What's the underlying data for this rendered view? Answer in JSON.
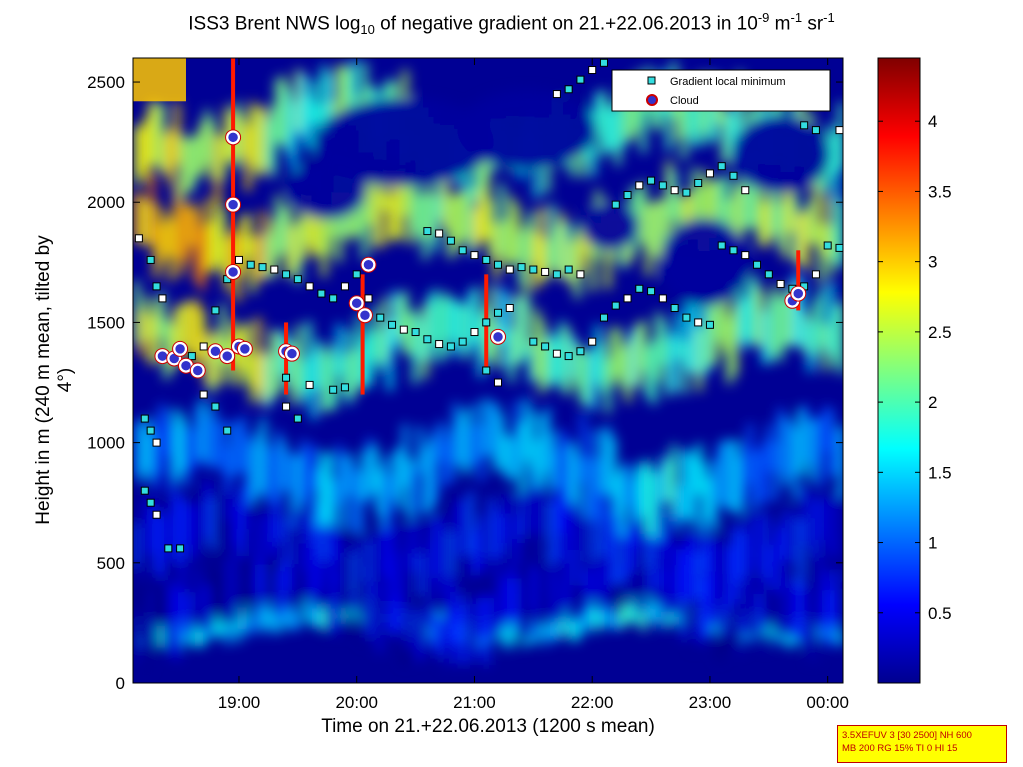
{
  "chart_data": {
    "type": "heatmap",
    "title_parts": {
      "pre": "ISS3 Brent NWS log",
      "sub": "10",
      "mid": " of negative gradient on 21.+22.06.2013 in 10",
      "sup1": "-9",
      "mid2": " m",
      "sup2": "-1",
      "mid3": " sr",
      "sup3": "-1"
    },
    "xlabel": "Time on 21.+22.06.2013 (1200 s mean)",
    "ylabel": "Height in m (240 m mean, tilted by 4°)",
    "x_unit": "hours since 21.06.2013 00:00",
    "xlim": [
      18.1,
      24.13
    ],
    "ylim": [
      0,
      2600
    ],
    "x_ticks": [
      {
        "value": 19,
        "label": "19:00"
      },
      {
        "value": 20,
        "label": "20:00"
      },
      {
        "value": 21,
        "label": "21:00"
      },
      {
        "value": 22,
        "label": "22:00"
      },
      {
        "value": 23,
        "label": "23:00"
      },
      {
        "value": 24,
        "label": "00:00"
      }
    ],
    "y_ticks": [
      0,
      500,
      1000,
      1500,
      2000,
      2500
    ],
    "colorbar": {
      "colormap": "jet",
      "clim": [
        0,
        4.45
      ],
      "ticks": [
        0.5,
        1,
        1.5,
        2,
        2.5,
        3,
        3.5,
        4
      ]
    },
    "legend": {
      "position": "top-right",
      "entries": [
        {
          "name": "Gradient local minimum",
          "marker": "square",
          "color": "#33dde0"
        },
        {
          "name": "Cloud",
          "marker": "circle",
          "color": "#cc0000"
        }
      ]
    },
    "field_layers": [
      {
        "y": 250,
        "value": 1.5,
        "note": "low turbulent band"
      },
      {
        "y": 350,
        "value": 0.3
      },
      {
        "y": 600,
        "value": 0.5
      },
      {
        "y": 900,
        "value": 1.2
      },
      {
        "y": 1400,
        "value": 2.0
      },
      {
        "y": 1900,
        "value": 2.4
      },
      {
        "y": 2300,
        "value": 2.0
      }
    ],
    "series": [
      {
        "name": "Gradient local minimum",
        "points": [
          [
            18.15,
            1850
          ],
          [
            18.25,
            1760
          ],
          [
            18.3,
            1650
          ],
          [
            18.35,
            1600
          ],
          [
            18.45,
            1340
          ],
          [
            18.6,
            1360
          ],
          [
            18.7,
            1400
          ],
          [
            18.8,
            1550
          ],
          [
            18.9,
            1680
          ],
          [
            19.0,
            1760
          ],
          [
            19.1,
            1740
          ],
          [
            19.2,
            1730
          ],
          [
            19.3,
            1720
          ],
          [
            19.4,
            1700
          ],
          [
            19.5,
            1680
          ],
          [
            19.6,
            1650
          ],
          [
            19.7,
            1620
          ],
          [
            19.8,
            1600
          ],
          [
            19.9,
            1650
          ],
          [
            20.0,
            1700
          ],
          [
            19.4,
            1270
          ],
          [
            19.6,
            1240
          ],
          [
            19.8,
            1220
          ],
          [
            19.9,
            1230
          ],
          [
            20.1,
            1600
          ],
          [
            20.2,
            1520
          ],
          [
            20.3,
            1490
          ],
          [
            20.4,
            1470
          ],
          [
            20.5,
            1460
          ],
          [
            20.6,
            1430
          ],
          [
            20.7,
            1410
          ],
          [
            20.8,
            1400
          ],
          [
            20.9,
            1420
          ],
          [
            21.0,
            1460
          ],
          [
            21.1,
            1500
          ],
          [
            21.2,
            1540
          ],
          [
            21.3,
            1560
          ],
          [
            21.5,
            1420
          ],
          [
            21.6,
            1400
          ],
          [
            21.7,
            1370
          ],
          [
            21.8,
            1360
          ],
          [
            21.9,
            1380
          ],
          [
            22.0,
            1420
          ],
          [
            22.1,
            1520
          ],
          [
            22.2,
            1570
          ],
          [
            22.3,
            1600
          ],
          [
            22.4,
            1640
          ],
          [
            22.5,
            1630
          ],
          [
            22.6,
            1600
          ],
          [
            22.7,
            1560
          ],
          [
            22.8,
            1520
          ],
          [
            22.9,
            1500
          ],
          [
            23.0,
            1490
          ],
          [
            20.6,
            1880
          ],
          [
            20.7,
            1870
          ],
          [
            20.8,
            1840
          ],
          [
            20.9,
            1800
          ],
          [
            21.0,
            1780
          ],
          [
            21.1,
            1760
          ],
          [
            21.2,
            1740
          ],
          [
            21.3,
            1720
          ],
          [
            21.4,
            1730
          ],
          [
            21.5,
            1720
          ],
          [
            21.6,
            1710
          ],
          [
            21.7,
            1700
          ],
          [
            21.8,
            1720
          ],
          [
            21.9,
            1700
          ],
          [
            22.2,
            1990
          ],
          [
            22.3,
            2030
          ],
          [
            22.4,
            2070
          ],
          [
            22.5,
            2090
          ],
          [
            22.6,
            2070
          ],
          [
            22.7,
            2050
          ],
          [
            22.8,
            2040
          ],
          [
            22.9,
            2080
          ],
          [
            23.0,
            2120
          ],
          [
            23.1,
            2150
          ],
          [
            23.2,
            2110
          ],
          [
            23.3,
            2050
          ],
          [
            23.1,
            1820
          ],
          [
            23.2,
            1800
          ],
          [
            23.3,
            1780
          ],
          [
            23.4,
            1740
          ],
          [
            23.5,
            1700
          ],
          [
            23.6,
            1660
          ],
          [
            23.7,
            1640
          ],
          [
            23.8,
            1650
          ],
          [
            23.9,
            1700
          ],
          [
            24.0,
            1820
          ],
          [
            24.1,
            1810
          ],
          [
            21.7,
            2450
          ],
          [
            21.8,
            2470
          ],
          [
            21.9,
            2510
          ],
          [
            22.0,
            2550
          ],
          [
            22.1,
            2580
          ],
          [
            23.5,
            2420
          ],
          [
            23.6,
            2400
          ],
          [
            23.8,
            2320
          ],
          [
            23.9,
            2300
          ],
          [
            24.1,
            2300
          ],
          [
            18.2,
            1100
          ],
          [
            18.25,
            1050
          ],
          [
            18.3,
            1000
          ],
          [
            18.2,
            800
          ],
          [
            18.25,
            750
          ],
          [
            18.3,
            700
          ],
          [
            18.4,
            560
          ],
          [
            18.5,
            560
          ],
          [
            18.7,
            1200
          ],
          [
            18.8,
            1150
          ],
          [
            18.9,
            1050
          ],
          [
            19.4,
            1150
          ],
          [
            19.5,
            1100
          ],
          [
            21.1,
            1300
          ],
          [
            21.2,
            1250
          ]
        ]
      },
      {
        "name": "Cloud",
        "points": [
          [
            18.35,
            1360
          ],
          [
            18.45,
            1350
          ],
          [
            18.5,
            1390
          ],
          [
            18.55,
            1320
          ],
          [
            18.65,
            1300
          ],
          [
            18.8,
            1380
          ],
          [
            18.9,
            1360
          ],
          [
            19.0,
            1400
          ],
          [
            19.05,
            1390
          ],
          [
            18.95,
            1710
          ],
          [
            18.95,
            1990
          ],
          [
            18.95,
            2270
          ],
          [
            19.4,
            1380
          ],
          [
            19.45,
            1370
          ],
          [
            20.0,
            1580
          ],
          [
            20.07,
            1530
          ],
          [
            20.1,
            1740
          ],
          [
            21.2,
            1440
          ],
          [
            23.7,
            1590
          ],
          [
            23.75,
            1620
          ]
        ]
      }
    ]
  },
  "info_box": {
    "line1": "3.5XEFUV 3 [30 2500] NH 600",
    "line2": "MB 200 RG 15% TI 0 HI 15"
  },
  "colors": {
    "info_box_bg": "#ffff00",
    "info_box_border": "#c00000"
  }
}
